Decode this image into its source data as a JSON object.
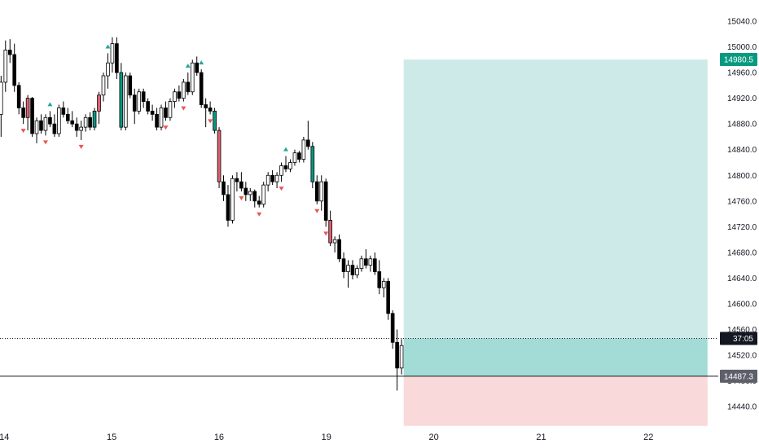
{
  "chart_data": {
    "type": "candlestick",
    "x_ticks": [
      {
        "label": "14",
        "day": 0
      },
      {
        "label": "15",
        "day": 1
      },
      {
        "label": "16",
        "day": 2
      },
      {
        "label": "19",
        "day": 3
      },
      {
        "label": "20",
        "day": 4
      },
      {
        "label": "21",
        "day": 5
      },
      {
        "label": "22",
        "day": 6
      }
    ],
    "y_ticks": [
      14440.0,
      14480.0,
      14520.0,
      14560.0,
      14600.0,
      14640.0,
      14680.0,
      14720.0,
      14760.0,
      14800.0,
      14840.0,
      14880.0,
      14920.0,
      14960.0,
      15000.0,
      15040.0
    ],
    "ylim": [
      14411,
      15073
    ],
    "xlim_days": [
      -0.04,
      6.65
    ],
    "grid": false,
    "colors": {
      "bull_body": "#ffffff",
      "bear_body": "#000000",
      "candle_outline": "#000000",
      "highlight_bull": "#089981",
      "highlight_bear": "#e06070",
      "up_marker": "#26a69a",
      "down_marker": "#ef5350",
      "target_zone": "#cdeae8",
      "target_zone_near": "#a3dcd6",
      "stop_zone": "#fad9da",
      "target_badge": "#089981",
      "entry_badge": "#5d606b",
      "current_badge": "#131722"
    },
    "candles": [
      [
        14895,
        14955,
        14860,
        14945
      ],
      [
        14945,
        15010,
        14930,
        14995
      ],
      [
        14995,
        15012,
        14975,
        14988
      ],
      [
        14988,
        15005,
        14930,
        14940
      ],
      [
        14940,
        14945,
        14895,
        14905
      ],
      [
        14905,
        14915,
        14880,
        14890
      ],
      [
        14890,
        14925,
        14870,
        14920
      ],
      [
        14920,
        14922,
        14860,
        14865
      ],
      [
        14865,
        14890,
        14850,
        14885
      ],
      [
        14885,
        14895,
        14865,
        14870
      ],
      [
        14870,
        14895,
        14862,
        14890
      ],
      [
        14890,
        14900,
        14875,
        14880
      ],
      [
        14880,
        14895,
        14860,
        14865
      ],
      [
        14865,
        14910,
        14860,
        14905
      ],
      [
        14905,
        14915,
        14890,
        14895
      ],
      [
        14895,
        14905,
        14880,
        14885
      ],
      [
        14885,
        14900,
        14875,
        14880
      ],
      [
        14880,
        14890,
        14860,
        14870
      ],
      [
        14870,
        14885,
        14855,
        14875
      ],
      [
        14875,
        14895,
        14868,
        14890
      ],
      [
        14890,
        14898,
        14870,
        14875
      ],
      [
        14875,
        14905,
        14870,
        14900
      ],
      [
        14900,
        14930,
        14880,
        14925
      ],
      [
        14925,
        14960,
        14915,
        14955
      ],
      [
        14955,
        14990,
        14935,
        14975
      ],
      [
        14975,
        15015,
        14960,
        15005
      ],
      [
        15005,
        15015,
        14950,
        14960
      ],
      [
        14960,
        14975,
        14870,
        14875
      ],
      [
        14875,
        14960,
        14870,
        14955
      ],
      [
        14955,
        14960,
        14920,
        14925
      ],
      [
        14925,
        14935,
        14880,
        14900
      ],
      [
        14900,
        14935,
        14895,
        14930
      ],
      [
        14930,
        14935,
        14905,
        14915
      ],
      [
        14915,
        14920,
        14895,
        14900
      ],
      [
        14900,
        14910,
        14885,
        14895
      ],
      [
        14895,
        14905,
        14870,
        14875
      ],
      [
        14875,
        14910,
        14870,
        14905
      ],
      [
        14905,
        14915,
        14885,
        14890
      ],
      [
        14890,
        14920,
        14885,
        14915
      ],
      [
        14915,
        14935,
        14905,
        14930
      ],
      [
        14930,
        14940,
        14915,
        14920
      ],
      [
        14920,
        14950,
        14915,
        14945
      ],
      [
        14945,
        14960,
        14925,
        14930
      ],
      [
        14930,
        14980,
        14925,
        14975
      ],
      [
        14975,
        14985,
        14955,
        14960
      ],
      [
        14960,
        14965,
        14905,
        14910
      ],
      [
        14910,
        14920,
        14875,
        14905
      ],
      [
        14905,
        14915,
        14895,
        14900
      ],
      [
        14900,
        14905,
        14865,
        14870
      ],
      [
        14870,
        14875,
        14780,
        14790
      ],
      [
        14790,
        14800,
        14760,
        14770
      ],
      [
        14770,
        14785,
        14720,
        14730
      ],
      [
        14730,
        14800,
        14725,
        14795
      ],
      [
        14795,
        14805,
        14775,
        14790
      ],
      [
        14790,
        14805,
        14775,
        14780
      ],
      [
        14780,
        14790,
        14760,
        14770
      ],
      [
        14770,
        14780,
        14760,
        14775
      ],
      [
        14775,
        14778,
        14750,
        14760
      ],
      [
        14760,
        14768,
        14750,
        14755
      ],
      [
        14755,
        14790,
        14750,
        14785
      ],
      [
        14785,
        14805,
        14775,
        14800
      ],
      [
        14800,
        14808,
        14785,
        14790
      ],
      [
        14790,
        14805,
        14780,
        14800
      ],
      [
        14800,
        14820,
        14790,
        14815
      ],
      [
        14815,
        14830,
        14805,
        14810
      ],
      [
        14810,
        14825,
        14805,
        14820
      ],
      [
        14820,
        14840,
        14815,
        14835
      ],
      [
        14835,
        14838,
        14820,
        14825
      ],
      [
        14825,
        14860,
        14820,
        14855
      ],
      [
        14855,
        14885,
        14840,
        14845
      ],
      [
        14845,
        14852,
        14780,
        14790
      ],
      [
        14790,
        14800,
        14755,
        14760
      ],
      [
        14760,
        14800,
        14745,
        14790
      ],
      [
        14790,
        14795,
        14720,
        14730
      ],
      [
        14730,
        14745,
        14690,
        14695
      ],
      [
        14695,
        14705,
        14680,
        14700
      ],
      [
        14700,
        14708,
        14665,
        14670
      ],
      [
        14670,
        14680,
        14640,
        14650
      ],
      [
        14650,
        14668,
        14625,
        14660
      ],
      [
        14660,
        14668,
        14638,
        14645
      ],
      [
        14645,
        14660,
        14640,
        14655
      ],
      [
        14655,
        14675,
        14650,
        14670
      ],
      [
        14670,
        14685,
        14655,
        14660
      ],
      [
        14660,
        14675,
        14650,
        14670
      ],
      [
        14670,
        14680,
        14645,
        14650
      ],
      [
        14650,
        14668,
        14615,
        14625
      ],
      [
        14625,
        14640,
        14610,
        14635
      ],
      [
        14635,
        14640,
        14575,
        14585
      ],
      [
        14585,
        14590,
        14530,
        14540
      ],
      [
        14540,
        14560,
        14465,
        14500
      ],
      [
        14500,
        14545,
        14490,
        14535
      ]
    ],
    "up_markers": [
      11,
      24,
      42,
      45,
      64
    ],
    "down_markers": [
      5,
      10,
      18,
      37,
      41,
      47,
      54,
      58,
      63,
      71,
      73
    ],
    "highlight_candles": [
      {
        "index": 6,
        "type": "bear"
      },
      {
        "index": 21,
        "type": "bull"
      },
      {
        "index": 22,
        "type": "bear"
      },
      {
        "index": 27,
        "type": "bull"
      },
      {
        "index": 48,
        "type": "bull"
      },
      {
        "index": 49,
        "type": "bear"
      },
      {
        "index": 70,
        "type": "bull"
      },
      {
        "index": 74,
        "type": "bear"
      }
    ],
    "position": {
      "start_day": 3.72,
      "end_day": 6.55,
      "target": 14980.5,
      "entry": 14487.3,
      "stop": 14410,
      "current": 14546
    },
    "price_labels": {
      "target": "14980.5",
      "entry": "14487.3",
      "countdown": "37:05"
    }
  }
}
